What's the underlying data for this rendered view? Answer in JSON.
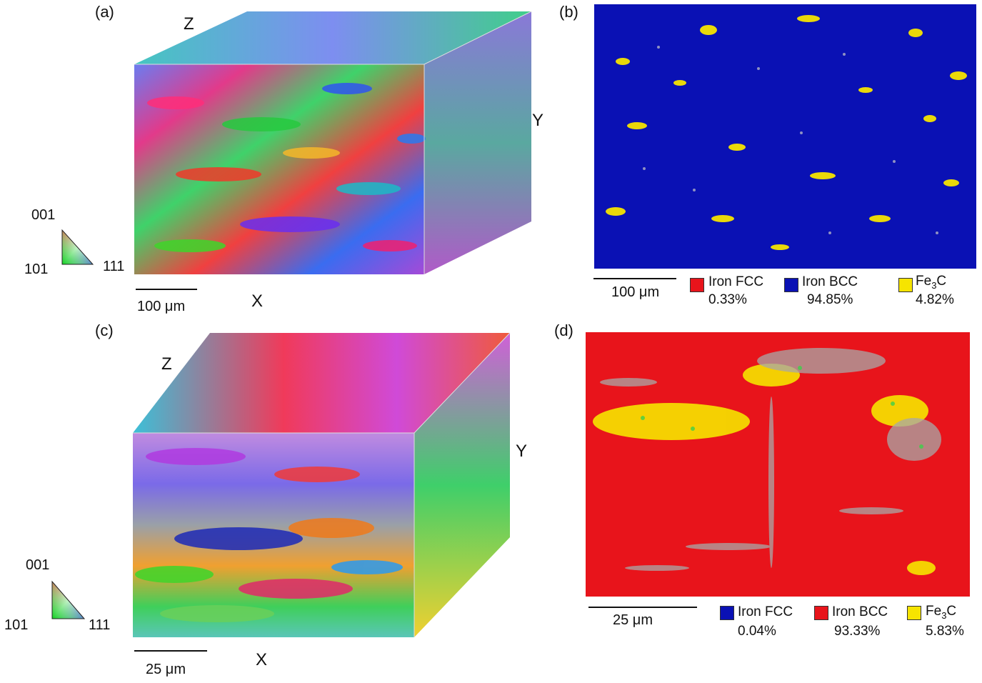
{
  "panels": {
    "a": {
      "label": "(a)",
      "axes": {
        "z": "Z",
        "y": "Y",
        "x": "X"
      },
      "scale_bar": "100 μm",
      "ipf_key": {
        "top": "001",
        "left": "101",
        "right": "111"
      }
    },
    "b": {
      "label": "(b)",
      "scale_bar": "100 μm",
      "map_color": "#0a11b4",
      "legend": [
        {
          "name": "Iron FCC",
          "percent": "0.33%",
          "color": "#e8141b"
        },
        {
          "name": "Iron BCC",
          "percent": "94.85%",
          "color": "#0a11b4"
        },
        {
          "name_main": "Fe",
          "name_sub": "3",
          "name_tail": "C",
          "percent": "4.82%",
          "color": "#f6e400"
        }
      ]
    },
    "c": {
      "label": "(c)",
      "axes": {
        "z": "Z",
        "y": "Y",
        "x": "X"
      },
      "scale_bar": "25 μm",
      "ipf_key": {
        "top": "001",
        "left": "101",
        "right": "111"
      }
    },
    "d": {
      "label": "(d)",
      "scale_bar": "25 μm",
      "map_color": "#e8141b",
      "legend": [
        {
          "name": "Iron FCC",
          "percent": "0.04%",
          "color": "#0a11b4"
        },
        {
          "name": "Iron BCC",
          "percent": "93.33%",
          "color": "#e8141b"
        },
        {
          "name_main": "Fe",
          "name_sub": "3",
          "name_tail": "C",
          "percent": "5.83%",
          "color": "#f6e400"
        }
      ]
    }
  }
}
